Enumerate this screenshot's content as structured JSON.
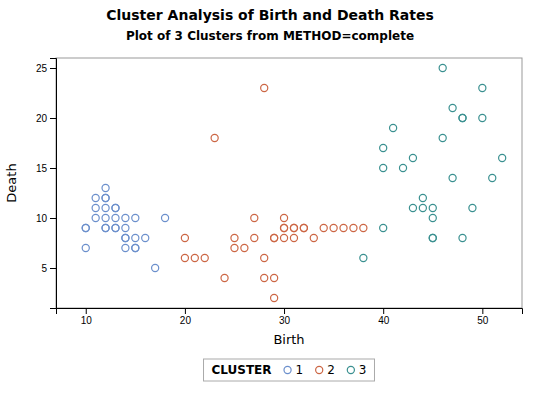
{
  "chart_data": {
    "type": "scatter",
    "title": "Cluster Analysis of Birth and Death Rates",
    "subtitle": "Plot of 3 Clusters from METHOD=complete",
    "x_label": "Birth",
    "y_label": "Death",
    "xlim": [
      7,
      54
    ],
    "ylim": [
      1,
      26
    ],
    "xticks": [
      10,
      20,
      30,
      40,
      50
    ],
    "yticks": [
      5,
      10,
      15,
      20,
      25
    ],
    "grid": false,
    "legend": "bottom",
    "legend_title": "CLUSTER",
    "marker": "circle",
    "series": [
      {
        "name": "1",
        "color": "#6b8fcc",
        "x": [
          10,
          10,
          11,
          11,
          11,
          12,
          12,
          12,
          12,
          12,
          12,
          13,
          13,
          13,
          13,
          13,
          14,
          14,
          14,
          14,
          14,
          15,
          15,
          15,
          15,
          10,
          12,
          16,
          17,
          18
        ],
        "values": [
          9,
          7,
          12,
          11,
          10,
          13,
          12,
          12,
          11,
          10,
          9,
          11,
          11,
          10,
          9,
          9,
          10,
          9,
          8,
          8,
          7,
          10,
          8,
          7,
          7,
          9,
          9,
          8,
          5,
          10
        ]
      },
      {
        "name": "2",
        "color": "#cc6644",
        "x": [
          20,
          20,
          21,
          22,
          23,
          24,
          25,
          25,
          26,
          27,
          27,
          28,
          28,
          28,
          29,
          29,
          29,
          29,
          30,
          30,
          30,
          30,
          31,
          31,
          31,
          32,
          32,
          33,
          34,
          35,
          36,
          37,
          38
        ],
        "values": [
          8,
          6,
          6,
          6,
          18,
          4,
          8,
          7,
          7,
          10,
          8,
          23,
          6,
          4,
          4,
          8,
          8,
          2,
          10,
          9,
          9,
          8,
          9,
          9,
          8,
          9,
          9,
          8,
          9,
          9,
          9,
          9,
          9
        ]
      },
      {
        "name": "3",
        "color": "#3a9090",
        "x": [
          38,
          40,
          40,
          40,
          41,
          42,
          43,
          43,
          44,
          44,
          45,
          45,
          45,
          45,
          46,
          46,
          47,
          47,
          48,
          48,
          48,
          49,
          50,
          50,
          51,
          52
        ],
        "values": [
          6,
          9,
          17,
          15,
          19,
          15,
          16,
          11,
          12,
          11,
          10,
          11,
          8,
          8,
          25,
          18,
          21,
          14,
          20,
          20,
          8,
          11,
          23,
          20,
          14,
          16
        ]
      }
    ]
  }
}
